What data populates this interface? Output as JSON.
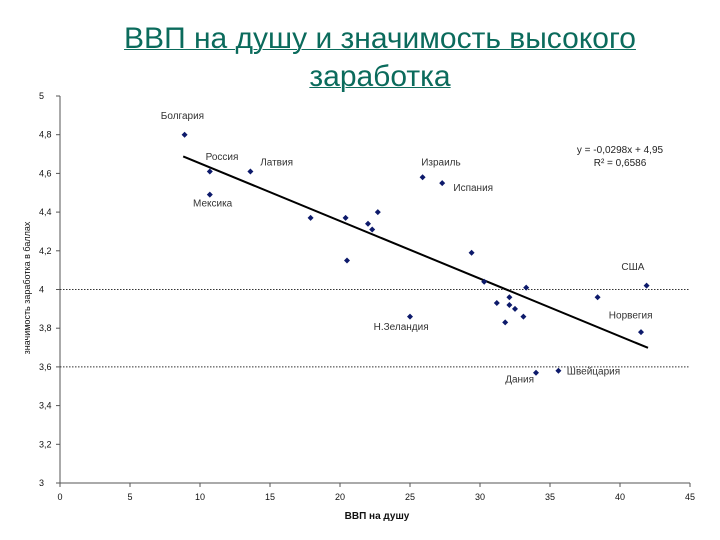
{
  "slide": {
    "title_line1": "ВВП на душу и значимость высокого",
    "title_line2": "заработка"
  },
  "chart_data": {
    "type": "scatter",
    "xlabel": "ВВП на душу",
    "ylabel": "значимость заработка в баллах",
    "xlim": [
      0,
      45
    ],
    "ylim": [
      3,
      5
    ],
    "xticks": [
      0,
      5,
      10,
      15,
      20,
      25,
      30,
      35,
      40,
      45
    ],
    "yticks": [
      3,
      3.2,
      3.4,
      3.6,
      3.8,
      4,
      4.2,
      4.4,
      4.6,
      4.8,
      5
    ],
    "x_tick_labels": [
      "0",
      "5",
      "10",
      "15",
      "20",
      "25",
      "30",
      "35",
      "40",
      "45"
    ],
    "y_tick_labels": [
      "3",
      "3,2",
      "3,4",
      "3,6",
      "3,8",
      "4",
      "4,2",
      "4,4",
      "4,6",
      "4,8",
      "5"
    ],
    "grid": false,
    "reference_lines_y": [
      4,
      3.6
    ],
    "trendline": {
      "slope": -0.0298,
      "intercept": 4.95,
      "x_range": [
        8.8,
        42
      ]
    },
    "equation": "y = -0,0298x + 4,95",
    "r_squared": "R² = 0,6586",
    "marker_color": "#0d1a6b",
    "points": [
      {
        "x": 8.9,
        "y": 4.8
      },
      {
        "x": 10.7,
        "y": 4.61
      },
      {
        "x": 13.6,
        "y": 4.61
      },
      {
        "x": 10.7,
        "y": 4.49
      },
      {
        "x": 17.9,
        "y": 4.37
      },
      {
        "x": 20.4,
        "y": 4.37
      },
      {
        "x": 22.0,
        "y": 4.34
      },
      {
        "x": 22.7,
        "y": 4.4
      },
      {
        "x": 22.3,
        "y": 4.31
      },
      {
        "x": 20.5,
        "y": 4.15
      },
      {
        "x": 25.9,
        "y": 4.58
      },
      {
        "x": 27.3,
        "y": 4.55
      },
      {
        "x": 29.4,
        "y": 4.19
      },
      {
        "x": 30.3,
        "y": 4.04
      },
      {
        "x": 31.2,
        "y": 3.93
      },
      {
        "x": 32.1,
        "y": 3.96
      },
      {
        "x": 32.1,
        "y": 3.92
      },
      {
        "x": 32.5,
        "y": 3.9
      },
      {
        "x": 33.3,
        "y": 4.01
      },
      {
        "x": 33.1,
        "y": 3.86
      },
      {
        "x": 31.8,
        "y": 3.83
      },
      {
        "x": 25.0,
        "y": 3.86
      },
      {
        "x": 34.0,
        "y": 3.57
      },
      {
        "x": 35.6,
        "y": 3.58
      },
      {
        "x": 38.4,
        "y": 3.96
      },
      {
        "x": 41.5,
        "y": 3.78
      },
      {
        "x": 41.9,
        "y": 4.02
      }
    ],
    "point_labels": [
      {
        "text": "Болгария",
        "x": 7.2,
        "y": 4.88
      },
      {
        "text": "Россия",
        "x": 10.4,
        "y": 4.67
      },
      {
        "text": "Латвия",
        "x": 14.3,
        "y": 4.64
      },
      {
        "text": "Мексика",
        "x": 9.5,
        "y": 4.43
      },
      {
        "text": "Израиль",
        "x": 25.8,
        "y": 4.64
      },
      {
        "text": "Испания",
        "x": 28.1,
        "y": 4.51
      },
      {
        "text": "США",
        "x": 40.1,
        "y": 4.1
      },
      {
        "text": "Норвегия",
        "x": 39.2,
        "y": 3.85
      },
      {
        "text": "Н.Зеландия",
        "x": 22.4,
        "y": 3.79
      },
      {
        "text": "Дания",
        "x": 31.8,
        "y": 3.52
      },
      {
        "text": "Швейцария",
        "x": 36.2,
        "y": 3.56
      }
    ]
  }
}
